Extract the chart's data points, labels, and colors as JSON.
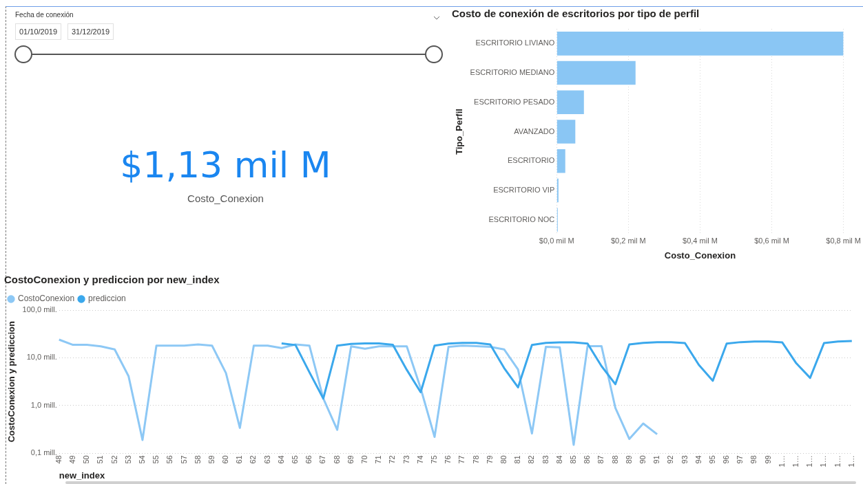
{
  "chart_data": [
    {
      "type": "other",
      "title": "Fecha de conexión",
      "annotations": [
        "01/10/2019",
        "31/12/2019"
      ]
    },
    {
      "type": "other",
      "title": "$1,13 mil M",
      "subtitle": "Costo_Conexion"
    },
    {
      "type": "bar",
      "orientation": "horizontal",
      "title": "Costo de conexión de escritorios por tipo de perfil",
      "xlabel": "Costo_Conexion",
      "ylabel": "Tipo_Perfil",
      "categories": [
        "ESCRITORIO LIVIANO",
        "ESCRITORIO MEDIANO",
        "ESCRITORIO PESADO",
        "AVANZADO",
        "ESCRITORIO",
        "ESCRITORIO VIP",
        "ESCRITORIO NOC"
      ],
      "values": [
        0.8,
        0.22,
        0.076,
        0.052,
        0.024,
        0.005,
        0.003
      ],
      "color": "#8ac6f4",
      "xlim": [
        0,
        0.8
      ],
      "xticks": [
        {
          "value": 0,
          "label": "$0,0 mil M"
        },
        {
          "value": 0.2,
          "label": "$0,2 mil M"
        },
        {
          "value": 0.4,
          "label": "$0,4 mil M"
        },
        {
          "value": 0.6,
          "label": "$0,6 mil M"
        },
        {
          "value": 0.8,
          "label": "$0,8 mil M"
        }
      ],
      "grid": "x",
      "legend": false
    },
    {
      "type": "line",
      "title": "CostoConexion y prediccion por new_index",
      "xlabel": "new_index",
      "ylabel": "CostoConexion y prediccion",
      "categories": [
        "48",
        "49",
        "50",
        "51",
        "52",
        "53",
        "54",
        "55",
        "56",
        "57",
        "58",
        "59",
        "60",
        "61",
        "62",
        "63",
        "64",
        "65",
        "66",
        "67",
        "68",
        "69",
        "70",
        "71",
        "72",
        "73",
        "74",
        "75",
        "76",
        "77",
        "78",
        "79",
        "80",
        "81",
        "82",
        "83",
        "84",
        "85",
        "86",
        "87",
        "88",
        "89",
        "90",
        "91",
        "92",
        "93",
        "94",
        "95",
        "96",
        "97",
        "98",
        "99",
        "1…",
        "1…",
        "1…",
        "1…",
        "1…",
        "1…"
      ],
      "series": [
        {
          "name": "CostoConexion",
          "color": "#8dc8f5",
          "values": [
            24,
            18.7,
            18.7,
            17.4,
            15,
            4.1,
            0.19,
            18,
            18,
            18,
            19,
            18,
            4.8,
            0.34,
            18,
            18,
            16,
            19,
            18,
            1.4,
            0.31,
            17.4,
            15.5,
            17.4,
            17.4,
            17.4,
            2.3,
            0.22,
            17,
            18,
            17.6,
            17,
            15,
            5.7,
            0.26,
            17,
            16.5,
            0.15,
            17.6,
            17.6,
            0.89,
            0.2,
            0.42,
            0.25,
            null,
            null,
            null,
            null,
            null,
            null,
            null,
            null,
            null,
            null,
            null,
            null,
            null,
            null
          ]
        },
        {
          "name": "prediccion",
          "color": "#3ba8ec",
          "values": [
            null,
            null,
            null,
            null,
            null,
            null,
            null,
            null,
            null,
            null,
            null,
            null,
            null,
            null,
            null,
            null,
            20,
            18.5,
            5,
            1.4,
            18,
            19.5,
            20,
            20,
            18.7,
            5.6,
            1.9,
            18,
            19.8,
            20.5,
            20.5,
            19,
            6.1,
            2.4,
            18.6,
            20.5,
            21,
            21,
            19.8,
            6.7,
            2.8,
            19,
            20.6,
            21.3,
            21.3,
            20.4,
            7.1,
            3.3,
            19.8,
            21.3,
            22,
            22,
            21,
            7.7,
            3.8,
            20.4,
            22,
            22.5
          ]
        }
      ],
      "log": "y",
      "ylim": [
        0.1,
        100
      ],
      "yticks": [
        {
          "value": 0.1,
          "label": "0,1 mill."
        },
        {
          "value": 1,
          "label": "1,0 mill."
        },
        {
          "value": 10,
          "label": "10,0 mill."
        },
        {
          "value": 100,
          "label": "100,0 mill."
        }
      ],
      "grid": "y",
      "legend": "top left",
      "marker": "none",
      "line_style": "solid"
    }
  ]
}
